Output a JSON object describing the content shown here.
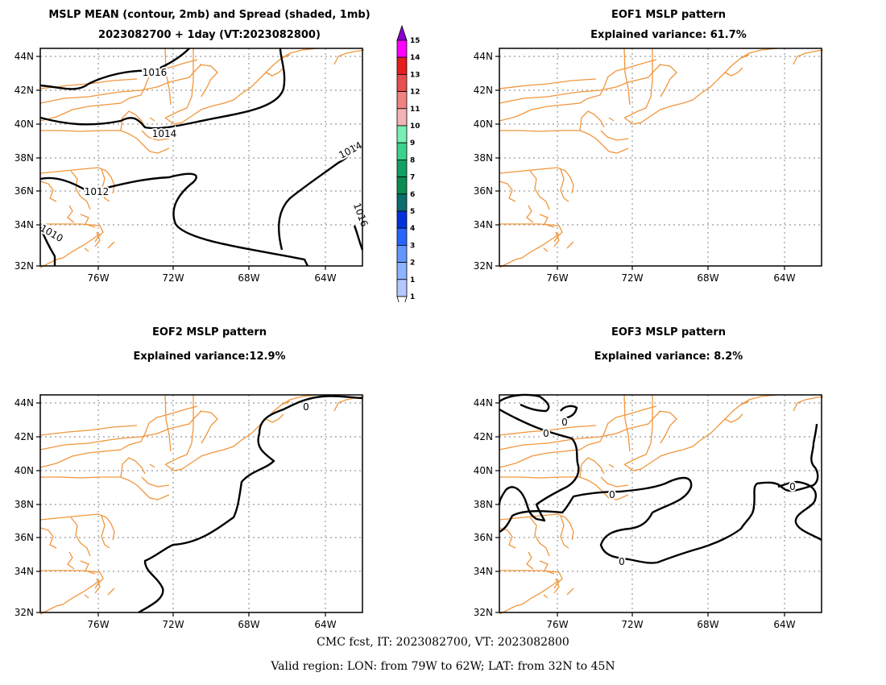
{
  "panel1": {
    "title_line1": "MSLP MEAN (contour, 2mb) and Spread (shaded, 1mb)",
    "title_line2": "2023082700 + 1day (VT:2023082800)",
    "contour_labels": [
      "1016",
      "1014",
      "1012",
      "1010",
      "1014",
      "1016"
    ]
  },
  "panel2": {
    "title_line1": "EOF1 MSLP pattern",
    "title_line2": "Explained variance: 61.7%"
  },
  "panel3": {
    "title_line1": "EOF2 MSLP pattern",
    "title_line2": "Explained variance:12.9%",
    "contour_labels": [
      "0"
    ]
  },
  "panel4": {
    "title_line1": "EOF3 MSLP pattern",
    "title_line2": "Explained variance: 8.2%",
    "contour_labels": [
      "0",
      "0",
      "0",
      "0",
      "0"
    ]
  },
  "axes": {
    "lat_labels": [
      "44N",
      "42N",
      "40N",
      "38N",
      "36N",
      "34N",
      "32N"
    ],
    "lon_labels": [
      "76W",
      "72W",
      "68W",
      "64W"
    ]
  },
  "colorbar": {
    "labels": [
      "1",
      "2",
      "3",
      "4",
      "5",
      "6",
      "7",
      "8",
      "9",
      "10",
      "11",
      "12",
      "13",
      "14",
      "15"
    ],
    "colors": [
      "#b4c8ff",
      "#8cb4ff",
      "#6496ff",
      "#2864ff",
      "#0032dc",
      "#0a6e6e",
      "#0a8c50",
      "#14a064",
      "#3cd28c",
      "#78f0b4",
      "#f4b4b4",
      "#f08282",
      "#e65050",
      "#e61e1e",
      "#ff00ff",
      "#8c00d2"
    ]
  },
  "footer": {
    "line1": "CMC fcst, IT: 2023082700, VT: 2023082800",
    "line2": "Valid region: LON: from 79W to 62W; LAT: from 32N to 45N"
  },
  "colors": {
    "coast": "#f0963c",
    "contour": "#000000",
    "grid": "#999999"
  }
}
